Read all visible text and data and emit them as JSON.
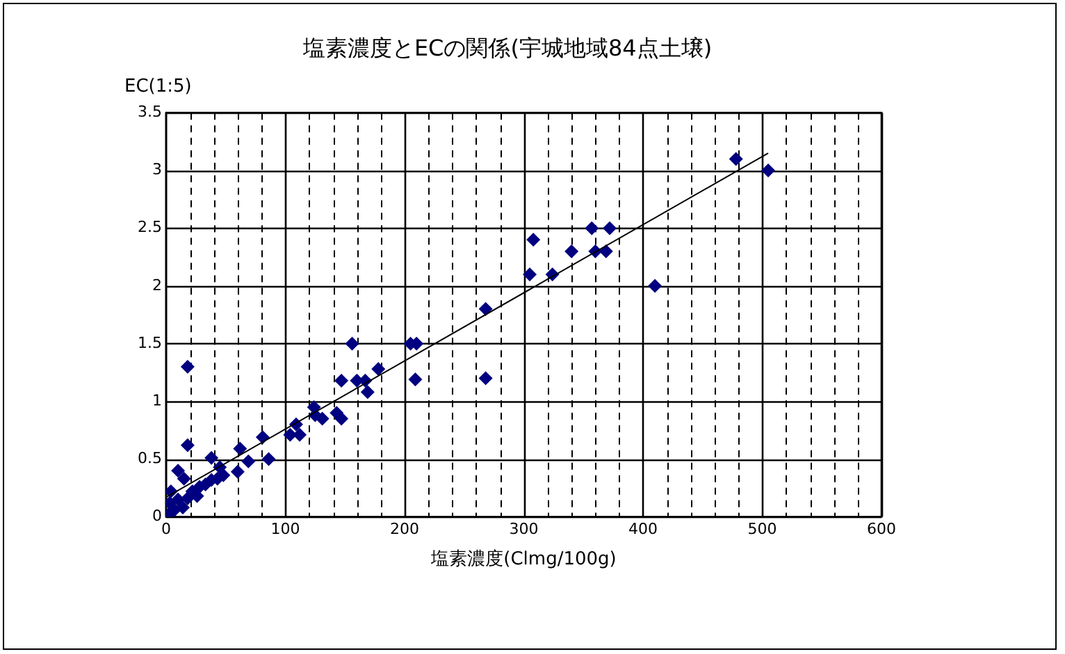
{
  "chart_data": {
    "type": "scatter",
    "title": "塩素濃度とECの関係(宇城地域84点土壌)",
    "xlabel": "塩素濃度(Clmg/100g)",
    "ylabel": "EC(1:5)",
    "series": [
      {
        "color": "#000080",
        "marker": "diamond",
        "x": [
          2,
          3,
          4,
          7,
          10,
          10,
          15,
          14,
          18,
          18,
          18,
          22,
          26,
          28,
          33,
          38,
          38,
          43,
          45,
          48,
          60,
          62,
          69,
          81,
          86,
          104,
          109,
          112,
          124,
          125,
          131,
          143,
          147,
          147,
          156,
          160,
          167,
          169,
          178,
          205,
          210,
          209,
          268,
          268,
          305,
          308,
          324,
          340,
          357,
          360,
          369,
          372,
          410,
          478,
          505
        ],
        "values": [
          0.02,
          0.12,
          0.22,
          0.06,
          0.15,
          0.4,
          0.33,
          0.08,
          0.16,
          1.3,
          0.62,
          0.22,
          0.18,
          0.26,
          0.28,
          0.51,
          0.32,
          0.33,
          0.43,
          0.36,
          0.39,
          0.59,
          0.48,
          0.69,
          0.5,
          0.71,
          0.8,
          0.71,
          0.95,
          0.88,
          0.85,
          0.9,
          0.85,
          1.18,
          1.5,
          1.18,
          1.18,
          1.08,
          1.28,
          1.5,
          1.5,
          1.19,
          1.8,
          1.2,
          2.1,
          2.4,
          2.1,
          2.3,
          2.5,
          2.3,
          2.3,
          2.5,
          2.0,
          3.1,
          3.0
        ]
      },
      {
        "type": "line",
        "color": "#000000",
        "marker": "none",
        "line_style": "solid",
        "x": [
          0,
          505
        ],
        "values": [
          0.17,
          3.15
        ]
      }
    ],
    "xlim": [
      0,
      600
    ],
    "xticks": [
      0,
      {
        "value": 20,
        "label": null
      },
      {
        "value": 40,
        "label": null
      },
      {
        "value": 60,
        "label": null
      },
      {
        "value": 80,
        "label": null
      },
      100,
      {
        "value": 120,
        "label": null
      },
      {
        "value": 140,
        "label": null
      },
      {
        "value": 160,
        "label": null
      },
      {
        "value": 180,
        "label": null
      },
      200,
      {
        "value": 220,
        "label": null
      },
      {
        "value": 240,
        "label": null
      },
      {
        "value": 260,
        "label": null
      },
      {
        "value": 280,
        "label": null
      },
      300,
      {
        "value": 320,
        "label": null
      },
      {
        "value": 340,
        "label": null
      },
      {
        "value": 360,
        "label": null
      },
      {
        "value": 380,
        "label": null
      },
      400,
      {
        "value": 420,
        "label": null
      },
      {
        "value": 440,
        "label": null
      },
      {
        "value": 460,
        "label": null
      },
      {
        "value": 480,
        "label": null
      },
      500,
      {
        "value": 520,
        "label": null
      },
      {
        "value": 540,
        "label": null
      },
      {
        "value": 560,
        "label": null
      },
      {
        "value": 580,
        "label": null
      },
      600
    ],
    "ylim": [
      0,
      3.5
    ],
    "yticks": [
      0,
      0.5,
      1,
      1.5,
      2,
      2.5,
      3,
      3.5
    ],
    "grid": true,
    "legend": false
  }
}
